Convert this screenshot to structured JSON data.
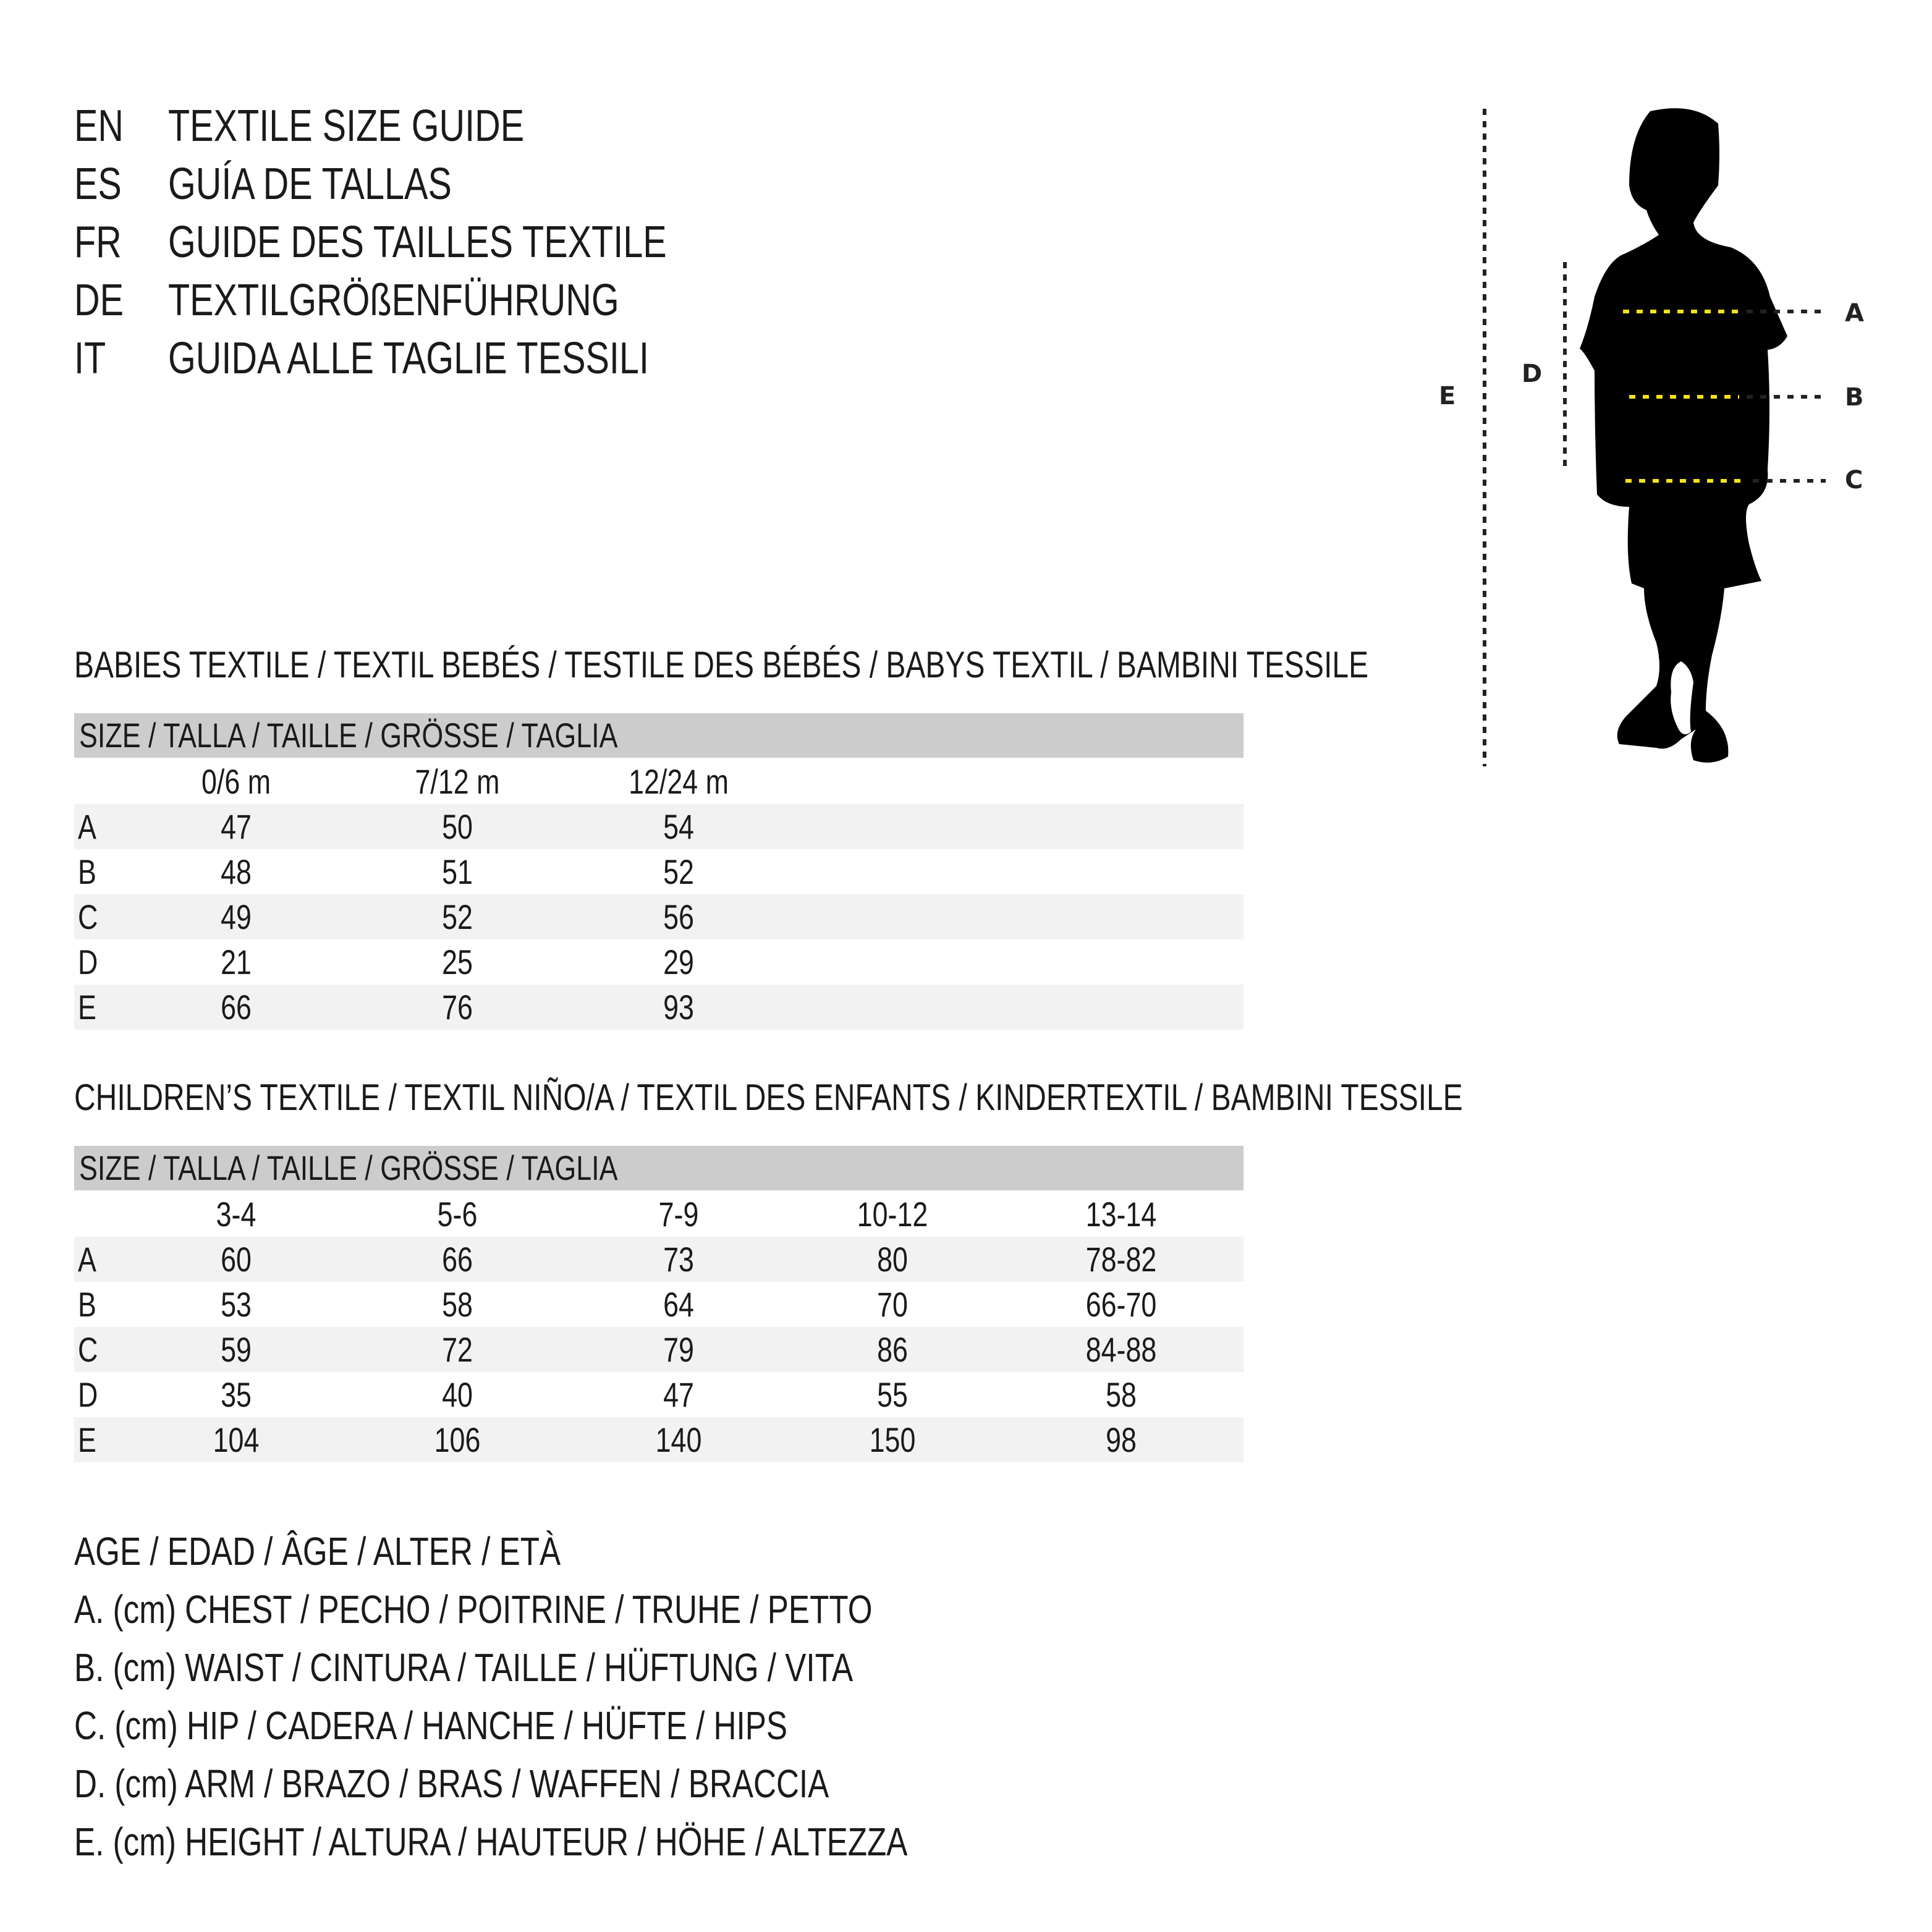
{
  "headings": [
    {
      "code": "EN",
      "text": "TEXTILE SIZE GUIDE"
    },
    {
      "code": "ES",
      "text": "GUÍA DE TALLAS"
    },
    {
      "code": "FR",
      "text": "GUIDE DES TAILLES TEXTILE"
    },
    {
      "code": "DE",
      "text": "TEXTILGRÖßENFÜHRUNG"
    },
    {
      "code": "IT",
      "text": "GUIDA ALLE TAGLIE TESSILI"
    }
  ],
  "figure": {
    "labels": {
      "A": "A",
      "B": "B",
      "C": "C",
      "D": "D",
      "E": "E"
    },
    "measure_line_color": "#f5e21a"
  },
  "babies": {
    "title": "BABIES TEXTILE / TEXTIL BEBÉS / TESTILE DES BÉBÉS / BABYS TEXTIL / BAMBINI TESSILE",
    "size_header": "SIZE / TALLA / TAILLE / GRÖSSE / TAGLIA",
    "columns": [
      "0/6 m",
      "7/12 m",
      "12/24 m"
    ],
    "rows": [
      {
        "label": "A",
        "values": [
          "47",
          "50",
          "54"
        ]
      },
      {
        "label": "B",
        "values": [
          "48",
          "51",
          "52"
        ]
      },
      {
        "label": "C",
        "values": [
          "49",
          "52",
          "56"
        ]
      },
      {
        "label": "D",
        "values": [
          "21",
          "25",
          "29"
        ]
      },
      {
        "label": "E",
        "values": [
          "66",
          "76",
          "93"
        ]
      }
    ]
  },
  "children": {
    "title": "CHILDREN’S TEXTILE / TEXTIL NIÑO/A / TEXTIL DES ENFANTS / KINDERTEXTIL / BAMBINI TESSILE",
    "size_header": "SIZE / TALLA / TAILLE / GRÖSSE / TAGLIA",
    "columns": [
      "3-4",
      "5-6",
      "7-9",
      "10-12",
      "13-14"
    ],
    "rows": [
      {
        "label": "A",
        "values": [
          "60",
          "66",
          "73",
          "80",
          "78-82"
        ]
      },
      {
        "label": "B",
        "values": [
          "53",
          "58",
          "64",
          "70",
          "66-70"
        ]
      },
      {
        "label": "C",
        "values": [
          "59",
          "72",
          "79",
          "86",
          "84-88"
        ]
      },
      {
        "label": "D",
        "values": [
          "35",
          "40",
          "47",
          "55",
          "58"
        ]
      },
      {
        "label": "E",
        "values": [
          "104",
          "106",
          "140",
          "150",
          "98"
        ]
      }
    ]
  },
  "legend": [
    "AGE / EDAD / ÂGE / ALTER / ETÀ",
    "A. (cm) CHEST / PECHO / POITRINE / TRUHE / PETTO",
    "B. (cm) WAIST / CINTURA / TAILLE / HÜFTUNG / VITA",
    "C. (cm) HIP / CADERA / HANCHE / HÜFTE / HIPS",
    "D. (cm) ARM / BRAZO / BRAS / WAFFEN / BRACCIA",
    "E. (cm) HEIGHT / ALTURA / HAUTEUR / HÖHE / ALTEZZA"
  ]
}
